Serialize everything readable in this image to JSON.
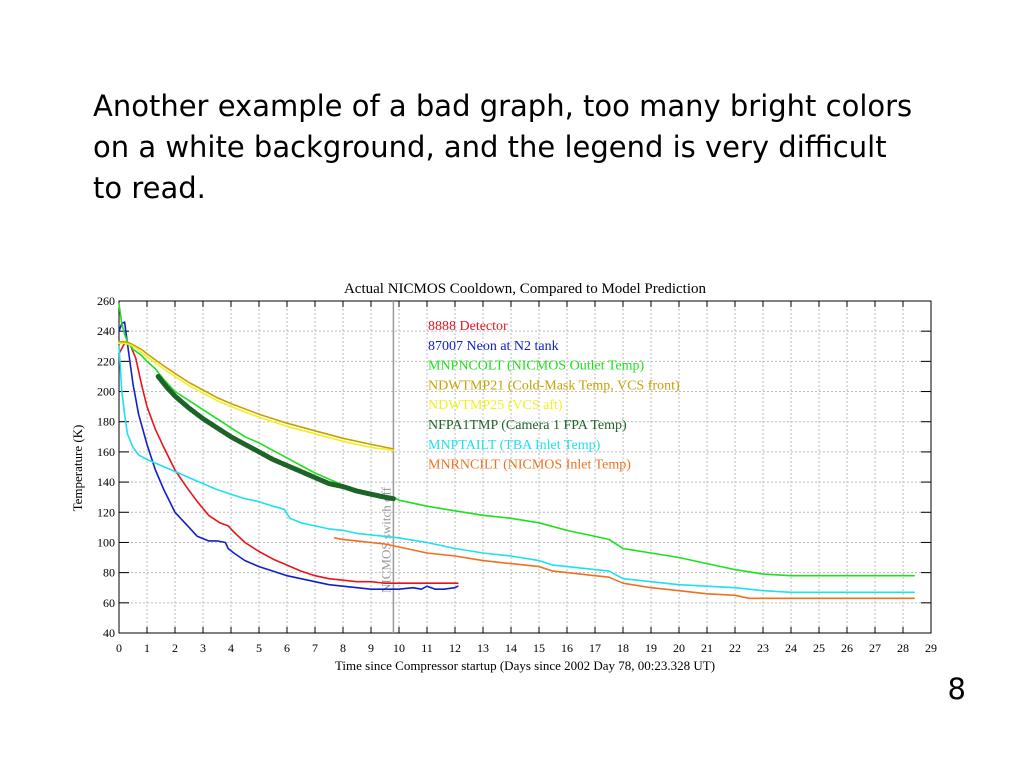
{
  "slide": {
    "text": "Another example of a bad graph, too many bright colors on a white background, and the legend is very difficult to read.",
    "page_number": "8"
  },
  "chart_data": {
    "type": "line",
    "title": "Actual NICMOS Cooldown, Compared to Model Prediction",
    "xlabel": "Time since Compressor startup (Days since 2002 Day 78, 00:23.328 UT)",
    "ylabel": "Temperature (K)",
    "xlim": [
      0,
      29
    ],
    "ylim": [
      40,
      260
    ],
    "x_ticks": [
      0,
      1,
      2,
      3,
      4,
      5,
      6,
      7,
      8,
      9,
      10,
      11,
      12,
      13,
      14,
      15,
      16,
      17,
      18,
      19,
      20,
      21,
      22,
      23,
      24,
      25,
      26,
      27,
      28,
      29
    ],
    "y_ticks": [
      40,
      60,
      80,
      100,
      120,
      140,
      160,
      180,
      200,
      220,
      240,
      260
    ],
    "grid": true,
    "legend_position": "top-center",
    "annotation": {
      "text": "NICMOS switch off",
      "x": 9.8
    },
    "series": [
      {
        "name": "8888 Detector",
        "color": "#e8141c",
        "x": [
          0,
          0.2,
          0.4,
          0.6,
          0.8,
          1,
          1.3,
          1.6,
          2,
          2.4,
          2.8,
          3.2,
          3.6,
          3.9,
          4.1,
          4.5,
          5,
          5.5,
          6,
          6.5,
          7,
          7.5,
          8,
          8.5,
          9,
          9.5,
          10,
          10.5,
          11,
          11.5,
          12,
          12.1
        ],
        "y": [
          225,
          232,
          231,
          222,
          205,
          190,
          175,
          163,
          148,
          137,
          127,
          118,
          113,
          111,
          107,
          100,
          94,
          89,
          85,
          81,
          78,
          76,
          75,
          74,
          74,
          73,
          73,
          73,
          73,
          73,
          73,
          73
        ]
      },
      {
        "name": "87007 Neon at N2 tank",
        "color": "#1020c8",
        "x": [
          0,
          0.1,
          0.2,
          0.3,
          0.5,
          0.7,
          1,
          1.3,
          1.6,
          2,
          2.4,
          2.8,
          3.2,
          3.5,
          3.8,
          3.9,
          4.1,
          4.5,
          5,
          5.5,
          6,
          6.5,
          7,
          7.5,
          8,
          8.5,
          9,
          9.5,
          10,
          10.5,
          10.8,
          11,
          11.3,
          11.6,
          12,
          12.1
        ],
        "y": [
          240,
          245,
          246,
          232,
          205,
          185,
          165,
          148,
          135,
          120,
          112,
          104,
          101,
          101,
          100,
          96,
          93,
          88,
          84,
          81,
          78,
          76,
          74,
          72,
          71,
          70,
          69,
          69,
          69,
          70,
          69,
          71,
          69,
          69,
          70,
          71
        ]
      },
      {
        "name": "MNPNCOLT (NICMOS Outlet Temp)",
        "color": "#1ee01e",
        "x": [
          0,
          0.1,
          0.2,
          0.3,
          0.5,
          0.8,
          1,
          1.3,
          1.6,
          2,
          2.5,
          3,
          3.5,
          4,
          4.5,
          5,
          5.5,
          6,
          6.5,
          7,
          7.5,
          8,
          8.5,
          9,
          9.5,
          9.8,
          10,
          10.5,
          11,
          12,
          13,
          14,
          15,
          16,
          17,
          17.5,
          18,
          19,
          20,
          21,
          22,
          23,
          24,
          25,
          26,
          27,
          28,
          28.4
        ],
        "y": [
          258,
          245,
          238,
          233,
          228,
          224,
          220,
          215,
          208,
          200,
          194,
          188,
          182,
          176,
          170,
          166,
          161,
          156,
          151,
          146,
          142,
          138,
          135,
          133,
          131,
          130,
          128,
          126,
          124,
          121,
          118,
          116,
          113,
          108,
          104,
          102,
          96,
          93,
          90,
          86,
          82,
          79,
          78,
          78,
          78,
          78,
          78,
          78
        ]
      },
      {
        "name": "NDWTMP21 (Cold-Mask Temp, VCS front)",
        "color": "#c8a000",
        "x": [
          0,
          0.2,
          0.4,
          0.6,
          0.8,
          1,
          1.3,
          1.6,
          2,
          2.5,
          3,
          3.5,
          4,
          5,
          6,
          7,
          8,
          9,
          9.8
        ],
        "y": [
          233,
          233,
          232,
          230,
          228,
          225,
          221,
          217,
          212,
          206,
          201,
          196,
          192,
          185,
          179,
          174,
          169,
          165,
          162
        ]
      },
      {
        "name": "NDWTMP25 (VCS aft)",
        "color": "#f0f020",
        "x": [
          0,
          0.2,
          0.4,
          0.6,
          0.8,
          1,
          1.3,
          1.6,
          2,
          2.5,
          3,
          3.5,
          4,
          5,
          6,
          7,
          8,
          9,
          9.8
        ],
        "y": [
          232,
          232,
          231,
          229,
          226,
          223,
          219,
          215,
          210,
          204,
          199,
          194,
          190,
          183,
          177,
          172,
          167,
          163,
          161
        ]
      },
      {
        "name": "NFPA1TMP (Camera 1 FPA Temp)",
        "color": "#1e6428",
        "x": [
          1.4,
          1.7,
          2,
          2.5,
          3,
          3.5,
          4,
          4.5,
          5,
          5.5,
          6,
          6.5,
          7,
          7.5,
          8,
          8.5,
          9,
          9.5,
          9.8
        ],
        "y": [
          210,
          203,
          197,
          189,
          182,
          176,
          170,
          165,
          160,
          155,
          151,
          147,
          143,
          139,
          137,
          134,
          132,
          130,
          129
        ]
      },
      {
        "name": "MNPTAILT (TBA Inlet Temp)",
        "color": "#1ee0f0",
        "x": [
          0,
          0.1,
          0.2,
          0.3,
          0.5,
          0.7,
          1,
          1.5,
          2,
          2.5,
          3,
          3.5,
          4,
          4.5,
          5,
          5.5,
          5.9,
          6.1,
          6.5,
          7,
          7.5,
          8,
          8.5,
          9,
          9.5,
          10,
          11,
          12,
          13,
          14,
          15,
          15.5,
          16,
          17,
          17.5,
          18,
          19,
          20,
          21,
          22,
          22.5,
          23,
          24,
          25,
          26,
          27,
          28,
          28.4
        ],
        "y": [
          230,
          200,
          185,
          172,
          163,
          158,
          155,
          151,
          147,
          143,
          139,
          135,
          132,
          129,
          127,
          124,
          122,
          116,
          113,
          111,
          109,
          108,
          106,
          105,
          104,
          103,
          100,
          96,
          93,
          91,
          88,
          85,
          84,
          82,
          81,
          76,
          74,
          72,
          71,
          70,
          69,
          68,
          67,
          67,
          67,
          67,
          67,
          67
        ]
      },
      {
        "name": "MNRNCILT (NICMOS Inlet Temp)",
        "color": "#f07020",
        "x": [
          7.7,
          8,
          8.5,
          9,
          9.5,
          10,
          11,
          12,
          13,
          14,
          15,
          15.5,
          16,
          17,
          17.5,
          18,
          19,
          20,
          21,
          22,
          22.5,
          23,
          24,
          25,
          26,
          27,
          28,
          28.4
        ],
        "y": [
          103,
          102,
          101,
          100,
          99,
          97,
          93,
          91,
          88,
          86,
          84,
          81,
          80,
          78,
          77,
          73,
          70,
          68,
          66,
          65,
          63,
          63,
          63,
          63,
          63,
          63,
          63,
          63
        ]
      }
    ]
  }
}
